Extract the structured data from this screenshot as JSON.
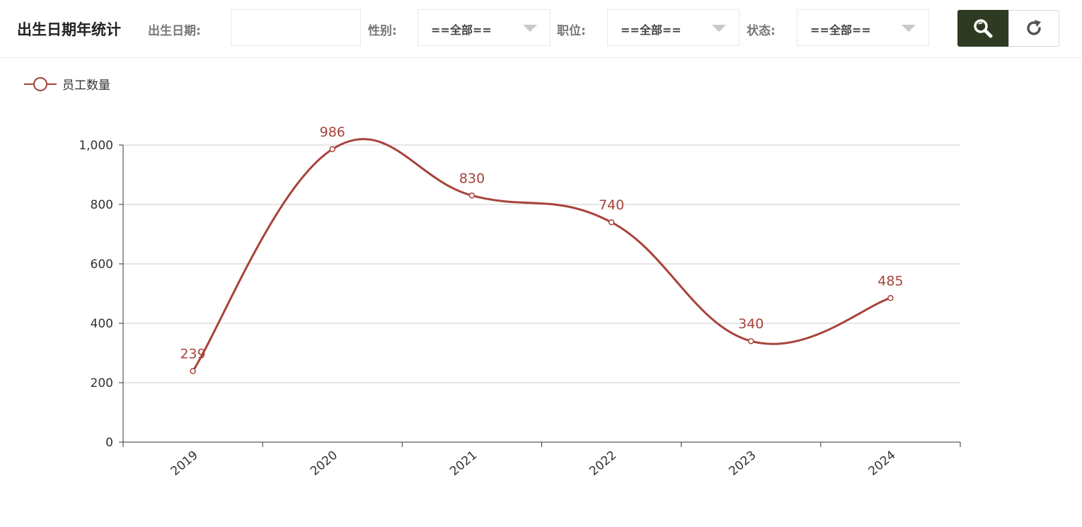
{
  "header": {
    "title": "出生日期年统计",
    "filters": {
      "birth_label": "出生日期:",
      "birth_value": "",
      "gender_label": "性别:",
      "gender_value": "==全部==",
      "position_label": "职位:",
      "position_value": "==全部==",
      "status_label": "状态:",
      "status_value": "==全部=="
    },
    "buttons": {
      "search_icon": "search-icon",
      "reset_icon": "refresh-icon"
    },
    "accent_color": "#2e3a22"
  },
  "chart_data": {
    "type": "line",
    "smooth": true,
    "categories": [
      "2019",
      "2020",
      "2021",
      "2022",
      "2023",
      "2024"
    ],
    "series": [
      {
        "name": "员工数量",
        "values": [
          239,
          986,
          830,
          740,
          340,
          485
        ],
        "color": "#a8433b"
      }
    ],
    "ylim": [
      0,
      1000
    ],
    "yticks": [
      0,
      200,
      400,
      600,
      800,
      1000
    ],
    "ytick_labels": [
      "0",
      "200",
      "400",
      "600",
      "800",
      "1,000"
    ],
    "show_data_labels": true,
    "grid": true,
    "legend_position": "top-left"
  }
}
